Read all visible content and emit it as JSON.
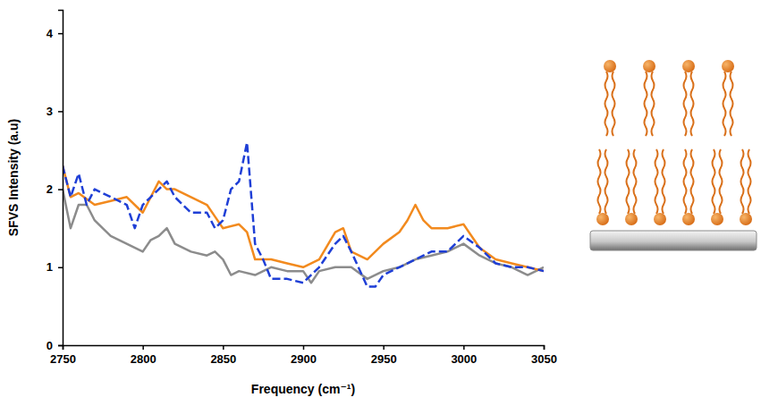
{
  "chart_data": {
    "type": "line",
    "x_label": "Frequency (cm⁻¹)",
    "y_label": "SFVS Intensity (a.u)",
    "xlim": [
      2750,
      3050
    ],
    "xticks": [
      2750,
      2800,
      2850,
      2900,
      2950,
      3000,
      3050
    ],
    "ylim": [
      0,
      4.3
    ],
    "yticks": [
      0,
      1,
      2,
      3,
      4
    ],
    "grid": false,
    "series": [
      {
        "color": "#8c8c8c",
        "line_style": "solid",
        "x": [
          2750,
          2755,
          2760,
          2765,
          2770,
          2780,
          2790,
          2800,
          2805,
          2810,
          2815,
          2820,
          2830,
          2840,
          2845,
          2850,
          2855,
          2860,
          2870,
          2880,
          2890,
          2900,
          2905,
          2910,
          2920,
          2930,
          2940,
          2950,
          2960,
          2970,
          2980,
          2990,
          3000,
          3010,
          3020,
          3030,
          3040,
          3050
        ],
        "values": [
          2.0,
          1.5,
          1.8,
          1.8,
          1.6,
          1.4,
          1.3,
          1.2,
          1.35,
          1.4,
          1.5,
          1.3,
          1.2,
          1.15,
          1.2,
          1.1,
          0.9,
          0.95,
          0.9,
          1.0,
          0.95,
          0.95,
          0.8,
          0.95,
          1.0,
          1.0,
          0.85,
          0.95,
          1.0,
          1.1,
          1.15,
          1.2,
          1.3,
          1.15,
          1.05,
          1.0,
          0.9,
          1.0
        ]
      },
      {
        "color": "#f28a1e",
        "line_style": "solid",
        "x": [
          2750,
          2755,
          2760,
          2770,
          2780,
          2790,
          2800,
          2805,
          2810,
          2815,
          2820,
          2830,
          2840,
          2845,
          2850,
          2860,
          2865,
          2870,
          2880,
          2890,
          2900,
          2910,
          2920,
          2925,
          2930,
          2940,
          2950,
          2960,
          2965,
          2970,
          2975,
          2980,
          2990,
          3000,
          3010,
          3020,
          3030,
          3040,
          3050
        ],
        "values": [
          2.3,
          1.9,
          1.95,
          1.8,
          1.85,
          1.9,
          1.7,
          1.9,
          2.1,
          2.0,
          2.0,
          1.9,
          1.8,
          1.65,
          1.5,
          1.55,
          1.45,
          1.1,
          1.1,
          1.05,
          1.0,
          1.1,
          1.45,
          1.5,
          1.2,
          1.1,
          1.3,
          1.45,
          1.6,
          1.8,
          1.6,
          1.5,
          1.5,
          1.55,
          1.25,
          1.1,
          1.05,
          1.0,
          0.95
        ]
      },
      {
        "color": "#1f3fd6",
        "line_style": "dashed",
        "x": [
          2750,
          2755,
          2760,
          2765,
          2770,
          2780,
          2790,
          2795,
          2800,
          2805,
          2810,
          2815,
          2820,
          2830,
          2840,
          2845,
          2850,
          2855,
          2860,
          2865,
          2870,
          2875,
          2880,
          2890,
          2900,
          2910,
          2920,
          2925,
          2930,
          2940,
          2945,
          2950,
          2960,
          2970,
          2980,
          2990,
          3000,
          3010,
          3020,
          3030,
          3040,
          3050
        ],
        "values": [
          2.3,
          1.9,
          2.2,
          1.8,
          2.0,
          1.9,
          1.8,
          1.5,
          1.8,
          1.9,
          2.0,
          2.1,
          1.9,
          1.7,
          1.7,
          1.5,
          1.6,
          2.0,
          2.1,
          2.6,
          1.3,
          1.1,
          0.85,
          0.85,
          0.8,
          1.0,
          1.3,
          1.4,
          1.2,
          0.75,
          0.75,
          0.9,
          1.0,
          1.1,
          1.2,
          1.2,
          1.4,
          1.25,
          1.05,
          1.0,
          1.0,
          0.95
        ]
      }
    ]
  }
}
